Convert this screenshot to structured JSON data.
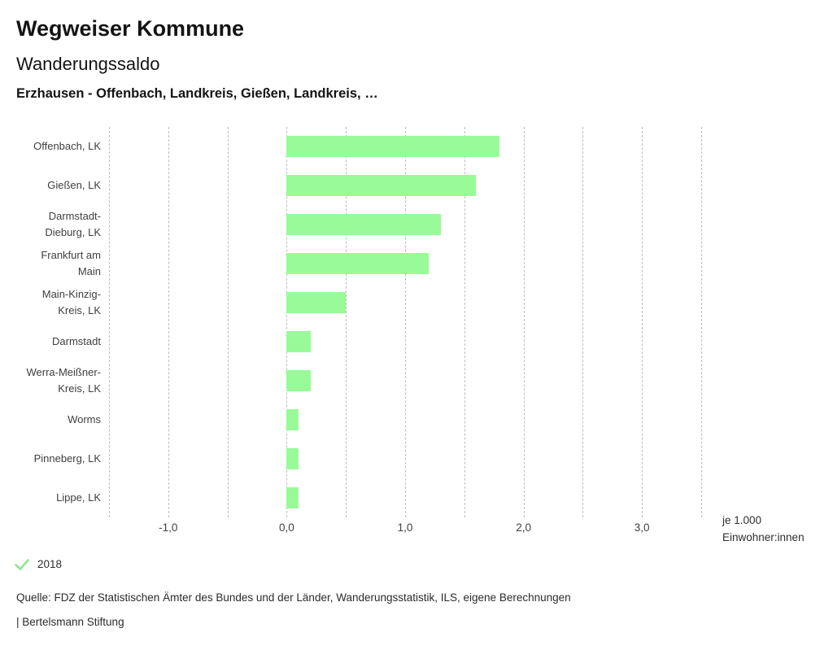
{
  "header": {
    "title": "Wegweiser Kommune",
    "subtitle": "Wanderungssaldo",
    "selection": "Erzhausen - Offenbach, Landkreis, Gießen, Landkreis, …"
  },
  "chart_data": {
    "type": "bar",
    "orientation": "horizontal",
    "title": "Wanderungssaldo",
    "categories": [
      "Offenbach, LK",
      "Gießen, LK",
      "Darmstadt-Dieburg, LK",
      "Frankfurt am Main",
      "Main-Kinzig-Kreis, LK",
      "Darmstadt",
      "Werra-Meißner-Kreis, LK",
      "Worms",
      "Pinneberg, LK",
      "Lippe, LK"
    ],
    "series": [
      {
        "name": "2018",
        "values": [
          1.8,
          1.6,
          1.3,
          1.2,
          0.5,
          0.2,
          0.2,
          0.1,
          0.1,
          0.1
        ]
      }
    ],
    "xlabel": "je 1.000 Einwohner:innen",
    "xlim": [
      -1.5,
      3.5
    ],
    "gridline_step": 0.5,
    "x_ticks": [
      {
        "value": -1,
        "label": "-1,0"
      },
      {
        "value": 0,
        "label": "0,0"
      },
      {
        "value": 1,
        "label": "1,0"
      },
      {
        "value": 2,
        "label": "2,0"
      },
      {
        "value": 3,
        "label": "3,0"
      }
    ],
    "grid": "vertical-dashed",
    "legend_position": "bottom-left",
    "bar_color": "#98fb98"
  },
  "axis_unit": {
    "line1": "je 1.000",
    "line2": "Einwohner:innen"
  },
  "legend": {
    "year": "2018",
    "check_icon": "check-icon",
    "check_color": "#8ee58e"
  },
  "footer": {
    "source": "Quelle: FDZ der Statistischen Ämter des Bundes und der Länder, Wanderungsstatistik, ILS, eigene Berechnungen",
    "attribution": "| Bertelsmann Stiftung"
  },
  "colors": {
    "bar": "#98fb98",
    "gridline": "#bdbdbd",
    "title_text": "#141414",
    "axis_text": "#3f3f3f"
  }
}
